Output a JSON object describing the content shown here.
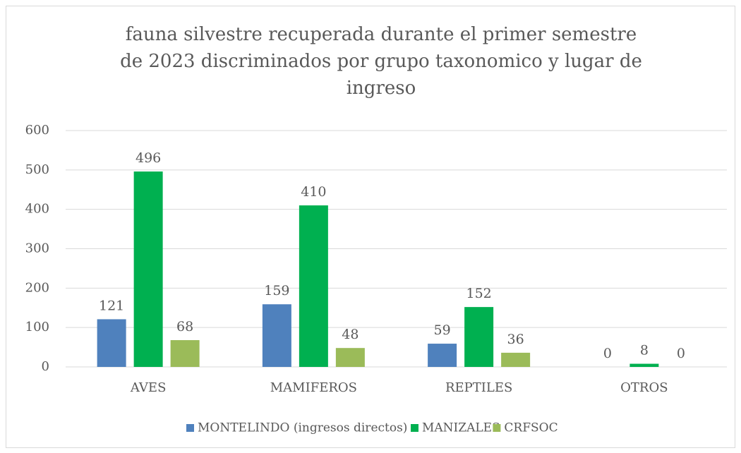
{
  "chart_data": {
    "type": "bar",
    "title": [
      "fauna silvestre recuperada durante el primer semestre",
      "de 2023 discriminados por grupo taxonomico y lugar de",
      "ingreso"
    ],
    "categories": [
      "AVES",
      "MAMIFEROS",
      "REPTILES",
      "OTROS"
    ],
    "series": [
      {
        "name": "MONTELINDO (ingresos directos)",
        "color": "#4f81bd",
        "values": [
          121,
          159,
          59,
          0
        ]
      },
      {
        "name": "MANIZALES",
        "color": "#00b050",
        "values": [
          496,
          410,
          152,
          8
        ]
      },
      {
        "name": "CRFSOC",
        "color": "#9bbb59",
        "values": [
          68,
          48,
          36,
          0
        ]
      }
    ],
    "ylim": [
      0,
      600
    ],
    "yticks": [
      0,
      100,
      200,
      300,
      400,
      500,
      600
    ],
    "grid": true,
    "legend": "bottom"
  }
}
